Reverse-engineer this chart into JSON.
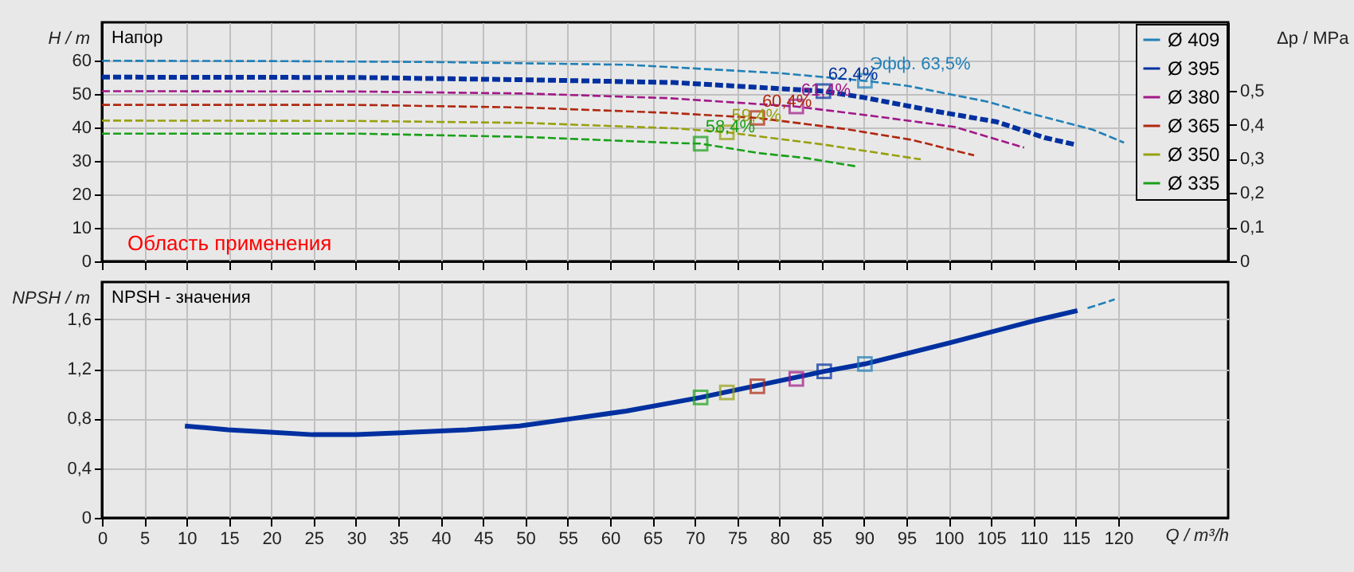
{
  "chart_data": [
    {
      "type": "line",
      "xlim": [
        0,
        133
      ],
      "xticks": [
        0,
        5,
        10,
        15,
        20,
        25,
        30,
        35,
        40,
        45,
        50,
        55,
        60,
        65,
        70,
        75,
        80,
        85,
        90,
        95,
        100,
        105,
        110,
        115,
        120
      ],
      "ylabel": "H / m",
      "ylim": [
        0,
        71.5
      ],
      "yticks": [
        0,
        10,
        20,
        30,
        40,
        50,
        60
      ],
      "y2label": "Δp / MPa",
      "y2lim": [
        0,
        0.7
      ],
      "y2ticks": [
        0,
        {
          "value": 0.1,
          "label": "0,1"
        },
        {
          "value": 0.2,
          "label": "0,2"
        },
        {
          "value": 0.3,
          "label": "0,3"
        },
        {
          "value": 0.4,
          "label": "0,4"
        },
        {
          "value": 0.5,
          "label": "0,5"
        }
      ],
      "tick_labels": "y",
      "grid": true,
      "legend": "top right",
      "line_style": "dashed",
      "series": [
        {
          "name": "Ø 409",
          "color": "#2080b8",
          "x": [
            0,
            20,
            40,
            62,
            80,
            90.1,
            95.1,
            104.5,
            109.5,
            117,
            120.7
          ],
          "values": [
            60,
            59.9,
            59.6,
            58.8,
            56.3,
            54,
            52.5,
            47.8,
            44.3,
            39.4,
            35.5
          ]
        },
        {
          "name": "Ø 395",
          "color": "#0030a0",
          "x": [
            0,
            30,
            50,
            67.5,
            85.2,
            90,
            98.2,
            105.7,
            111.3,
            115.1
          ],
          "values": [
            55.1,
            55,
            54.3,
            53.5,
            50.9,
            49,
            45,
            41.7,
            37,
            34.8
          ]
        },
        {
          "name": "Ø 380",
          "color": "#a01888",
          "x": [
            0,
            30,
            50,
            67,
            82,
            91,
            100.7,
            108.9
          ],
          "values": [
            50.9,
            50.8,
            50.2,
            48.8,
            46.3,
            43.5,
            40.2,
            34
          ]
        },
        {
          "name": "Ø 365",
          "color": "#b02810",
          "x": [
            0,
            30,
            50,
            67,
            77.4,
            88,
            95.7,
            103
          ],
          "values": [
            46.8,
            46.8,
            46,
            44.4,
            42.9,
            39.5,
            36.3,
            31.7
          ]
        },
        {
          "name": "Ø 350",
          "color": "#98a010",
          "x": [
            0,
            30,
            50,
            67.6,
            73.8,
            85,
            96.7
          ],
          "values": [
            42.1,
            42,
            41.4,
            39.8,
            38.6,
            35,
            30.5
          ]
        },
        {
          "name": "Ø 335",
          "color": "#18a018",
          "x": [
            0,
            30,
            50,
            67.6,
            70.7,
            77.5,
            83.1,
            89.3
          ],
          "values": [
            38.2,
            38.2,
            37.2,
            35.4,
            35.2,
            32.4,
            30.9,
            28.3
          ]
        },
        {
          "type": "scatter",
          "marker": "square",
          "x": [
            90.1,
            85.2,
            82,
            77.4,
            73.8,
            70.7
          ],
          "values": [
            54,
            50.9,
            46.3,
            42.9,
            38.6,
            35.2
          ],
          "colors": [
            "#2080b8",
            "#0030a0",
            "#a01888",
            "#b02810",
            "#98a010",
            "#18a018"
          ]
        }
      ],
      "annotations": [
        "Напор",
        "Область применения",
        {
          "text": "Эфф.  63,5%",
          "x": 90.1,
          "y": 54
        },
        {
          "text": "62,4%",
          "x": 85.2,
          "y": 50.9
        },
        {
          "text": "61,4%",
          "x": 82,
          "y": 46.3
        },
        {
          "text": "60,4%",
          "x": 77.4,
          "y": 42.9
        },
        {
          "text": "59,4%",
          "x": 73.8,
          "y": 38.6
        },
        {
          "text": "58,4%",
          "x": 70.7,
          "y": 35.2
        }
      ]
    },
    {
      "type": "line",
      "xlim": [
        0,
        133
      ],
      "xticks": [
        0,
        5,
        10,
        15,
        20,
        25,
        30,
        35,
        40,
        45,
        50,
        55,
        60,
        65,
        70,
        75,
        80,
        85,
        90,
        95,
        100,
        105,
        110,
        115,
        120
      ],
      "xlabel": "Q / m³/h",
      "ylabel": "NPSH / m",
      "ylim": [
        0,
        1.9
      ],
      "yticks": [
        0,
        {
          "value": 0.4,
          "label": "0,4"
        },
        {
          "value": 0.8,
          "label": "0,8"
        },
        {
          "value": 1.2,
          "label": "1,2"
        },
        {
          "value": 1.6,
          "label": "1,6"
        }
      ],
      "grid": true,
      "series": [
        {
          "color": "#0030a0",
          "line_style": "solid",
          "x": [
            9.8,
            14.9,
            19.9,
            24.9,
            30,
            36.8,
            43.1,
            49.3,
            55.6,
            61.9,
            67.5,
            70.7,
            85.3,
            90.1,
            100.1,
            110.2,
            115.2
          ],
          "values": [
            0.74,
            0.71,
            0.69,
            0.67,
            0.67,
            0.69,
            0.71,
            0.74,
            0.8,
            0.86,
            0.93,
            0.97,
            1.18,
            1.24,
            1.41,
            1.59,
            1.67
          ]
        },
        {
          "color": "#2080b8",
          "line_style": "dashed",
          "x": [
            116.4,
            119.6
          ],
          "values": [
            1.69,
            1.76
          ]
        },
        {
          "type": "scatter",
          "marker": "square",
          "x": [
            70.7,
            73.8,
            77.4,
            82,
            85.3,
            90.1
          ],
          "values": [
            0.97,
            1.01,
            1.06,
            1.12,
            1.18,
            1.24
          ],
          "colors": [
            "#18a018",
            "#98a010",
            "#b02810",
            "#a01888",
            "#0030a0",
            "#2080b8"
          ]
        }
      ],
      "annotations": [
        "NPSH - значения"
      ]
    }
  ]
}
